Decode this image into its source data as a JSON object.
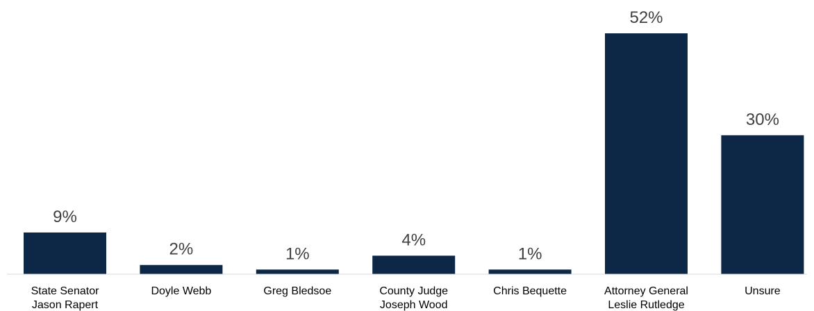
{
  "chart_data": {
    "type": "bar",
    "categories": [
      [
        "State Senator",
        "Jason Rapert"
      ],
      [
        "Doyle Webb"
      ],
      [
        "Greg Bledsoe"
      ],
      [
        "County Judge",
        "Joseph Wood"
      ],
      [
        "Chris Bequette"
      ],
      [
        "Attorney General",
        "Leslie Rutledge"
      ],
      [
        "Unsure"
      ]
    ],
    "values": [
      9,
      2,
      1,
      4,
      1,
      52,
      30
    ],
    "value_labels": [
      "9%",
      "2%",
      "1%",
      "4%",
      "1%",
      "52%",
      "30%"
    ],
    "bar_color": "#0d2846",
    "ylim": [
      0,
      52
    ],
    "grid": false,
    "legend": "none"
  }
}
